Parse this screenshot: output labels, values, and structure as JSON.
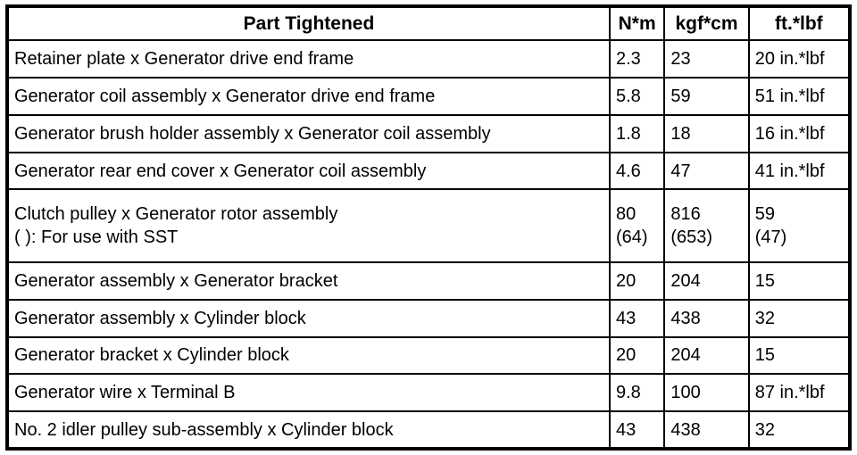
{
  "table": {
    "columns": [
      "Part Tightened",
      "N*m",
      "kgf*cm",
      "ft.*lbf"
    ],
    "rows": [
      {
        "part": "Retainer plate x Generator drive end frame",
        "nm": "2.3",
        "kgfcm": "23",
        "ftlbf": "20 in.*lbf"
      },
      {
        "part": "Generator coil assembly x Generator drive end frame",
        "nm": "5.8",
        "kgfcm": "59",
        "ftlbf": "51 in.*lbf"
      },
      {
        "part": "Generator brush holder assembly x Generator coil assembly",
        "nm": "1.8",
        "kgfcm": "18",
        "ftlbf": "16 in.*lbf"
      },
      {
        "part": "Generator rear end cover x Generator coil assembly",
        "nm": "4.6",
        "kgfcm": "47",
        "ftlbf": "41 in.*lbf"
      },
      {
        "part": "Clutch pulley x Generator rotor assembly\n( ): For use with SST",
        "nm": "80\n(64)",
        "kgfcm": "816\n(653)",
        "ftlbf": "59\n(47)"
      },
      {
        "part": "Generator assembly x Generator bracket",
        "nm": "20",
        "kgfcm": "204",
        "ftlbf": "15"
      },
      {
        "part": "Generator assembly x Cylinder block",
        "nm": "43",
        "kgfcm": "438",
        "ftlbf": "32"
      },
      {
        "part": "Generator bracket x Cylinder block",
        "nm": "20",
        "kgfcm": "204",
        "ftlbf": "15"
      },
      {
        "part": "Generator wire x Terminal B",
        "nm": "9.8",
        "kgfcm": "100",
        "ftlbf": "87 in.*lbf"
      },
      {
        "part": "No. 2 idler pulley sub-assembly x Cylinder block",
        "nm": "43",
        "kgfcm": "438",
        "ftlbf": "32"
      }
    ]
  }
}
